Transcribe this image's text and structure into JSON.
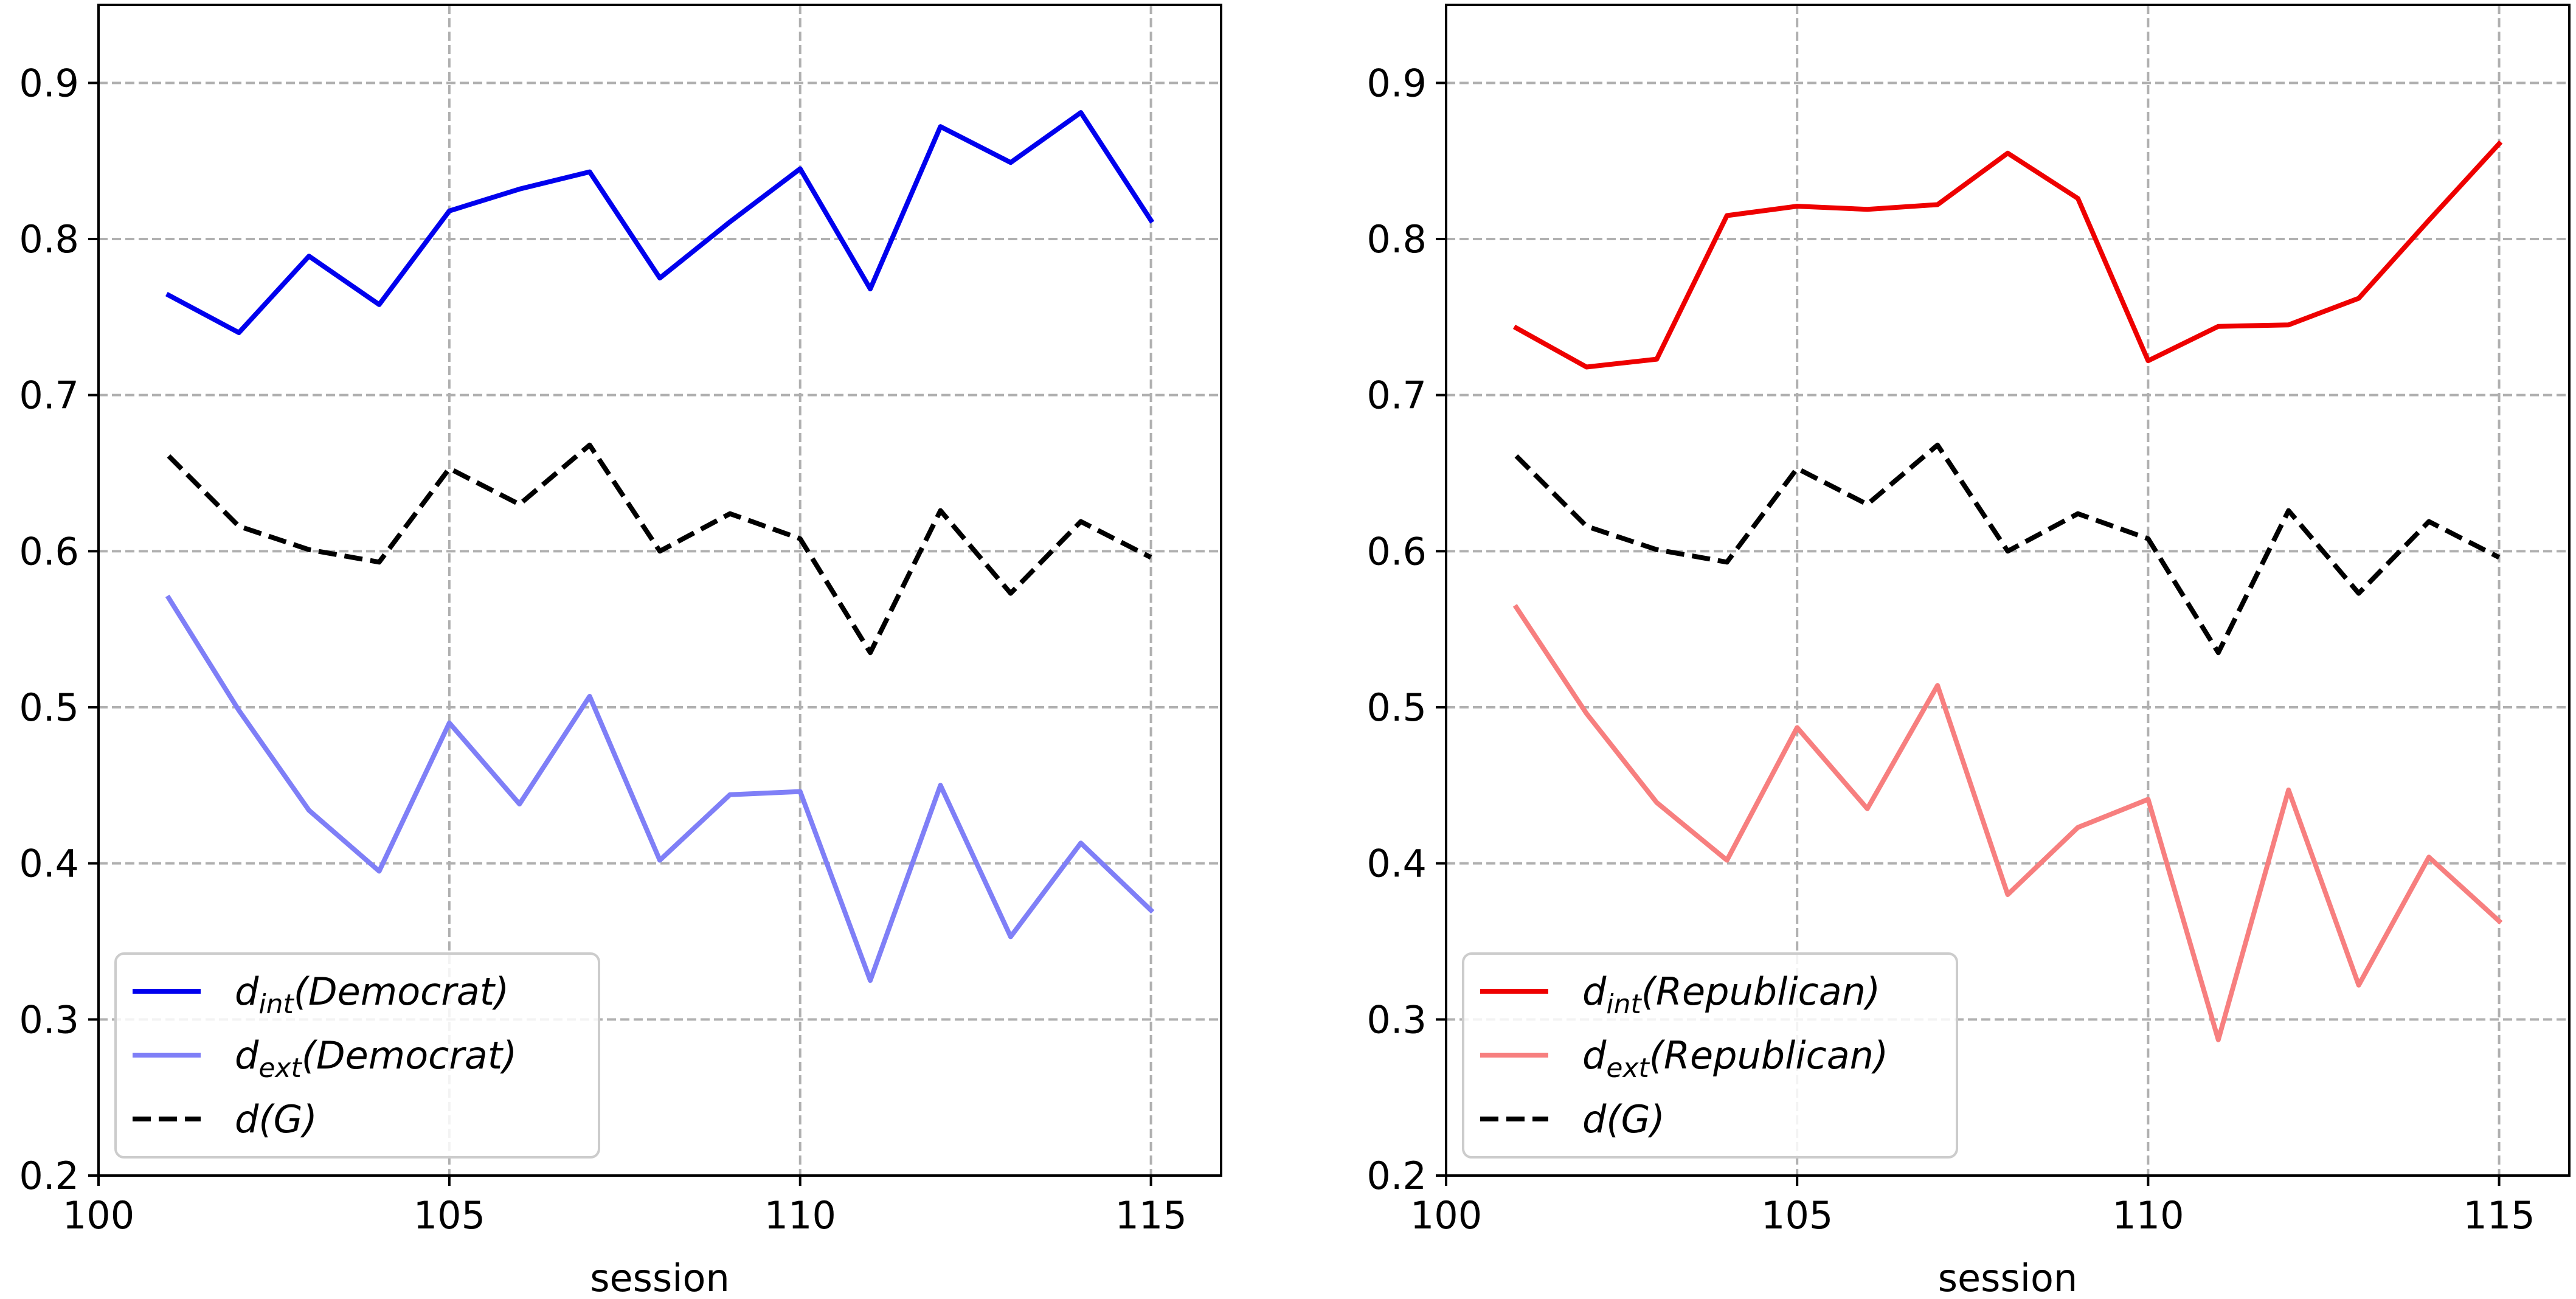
{
  "chart_data": [
    {
      "type": "line",
      "xlabel": "session",
      "ylabel": "",
      "xlim": [
        100,
        116
      ],
      "ylim": [
        0.2,
        0.95
      ],
      "xticks": [
        100,
        105,
        110,
        115
      ],
      "yticks": [
        0.2,
        0.3,
        0.4,
        0.5,
        0.6,
        0.7,
        0.8,
        0.9
      ],
      "grid": true,
      "legend_position": "lower-left",
      "x": [
        101,
        102,
        103,
        104,
        105,
        106,
        107,
        108,
        109,
        110,
        111,
        112,
        113,
        114,
        115
      ],
      "series": [
        {
          "legend_main": "d",
          "legend_sub": "int",
          "legend_rest": "(Democrat)",
          "color": "#0000ee",
          "dashed": false,
          "values": [
            0.764,
            0.74,
            0.789,
            0.758,
            0.818,
            0.832,
            0.843,
            0.775,
            0.811,
            0.845,
            0.768,
            0.872,
            0.849,
            0.881,
            0.812
          ]
        },
        {
          "legend_main": "d",
          "legend_sub": "ext",
          "legend_rest": "(Democrat)",
          "color": "#7f7ff7",
          "dashed": false,
          "values": [
            0.57,
            0.498,
            0.434,
            0.395,
            0.49,
            0.438,
            0.507,
            0.402,
            0.444,
            0.446,
            0.325,
            0.45,
            0.353,
            0.413,
            0.37
          ]
        },
        {
          "legend_main": "d",
          "legend_sub": "",
          "legend_rest": "(G)",
          "color": "#000000",
          "dashed": true,
          "values": [
            0.661,
            0.616,
            0.601,
            0.593,
            0.653,
            0.63,
            0.668,
            0.6,
            0.624,
            0.608,
            0.535,
            0.626,
            0.573,
            0.619,
            0.596
          ]
        }
      ]
    },
    {
      "type": "line",
      "xlabel": "session",
      "ylabel": "",
      "xlim": [
        100,
        116
      ],
      "ylim": [
        0.2,
        0.95
      ],
      "xticks": [
        100,
        105,
        110,
        115
      ],
      "yticks": [
        0.2,
        0.3,
        0.4,
        0.5,
        0.6,
        0.7,
        0.8,
        0.9
      ],
      "grid": true,
      "legend_position": "lower-left",
      "x": [
        101,
        102,
        103,
        104,
        105,
        106,
        107,
        108,
        109,
        110,
        111,
        112,
        113,
        114,
        115
      ],
      "series": [
        {
          "legend_main": "d",
          "legend_sub": "int",
          "legend_rest": "(Republican)",
          "color": "#ee0000",
          "dashed": false,
          "values": [
            0.743,
            0.718,
            0.723,
            0.815,
            0.821,
            0.819,
            0.822,
            0.855,
            0.826,
            0.722,
            0.744,
            0.745,
            0.762,
            0.812,
            0.861
          ]
        },
        {
          "legend_main": "d",
          "legend_sub": "ext",
          "legend_rest": "(Republican)",
          "color": "#f77f7f",
          "dashed": false,
          "values": [
            0.564,
            0.496,
            0.439,
            0.402,
            0.487,
            0.435,
            0.514,
            0.38,
            0.423,
            0.441,
            0.287,
            0.447,
            0.322,
            0.404,
            0.363
          ]
        },
        {
          "legend_main": "d",
          "legend_sub": "",
          "legend_rest": "(G)",
          "color": "#000000",
          "dashed": true,
          "values": [
            0.661,
            0.616,
            0.601,
            0.593,
            0.653,
            0.63,
            0.668,
            0.6,
            0.624,
            0.608,
            0.535,
            0.626,
            0.573,
            0.619,
            0.596
          ]
        }
      ]
    }
  ]
}
